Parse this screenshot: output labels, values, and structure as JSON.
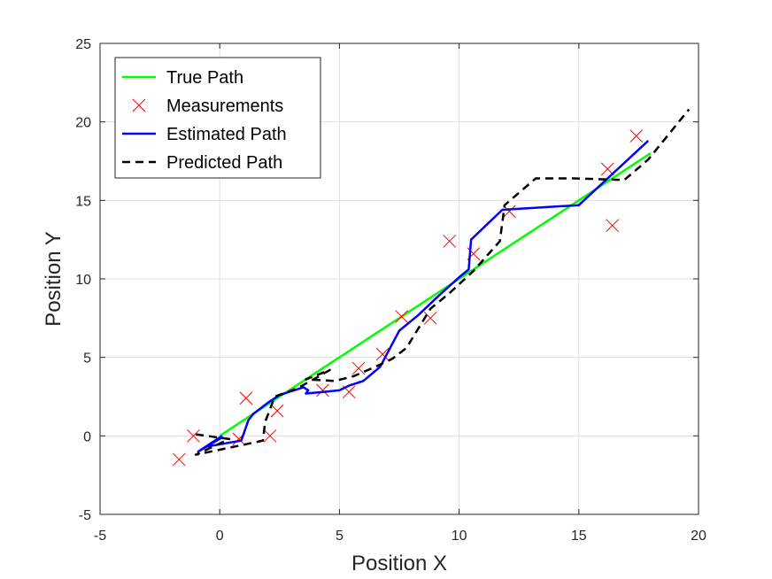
{
  "chart_data": {
    "type": "line",
    "title": "",
    "xlabel": "Position X",
    "ylabel": "Position Y",
    "xlim": [
      -5,
      20
    ],
    "ylim": [
      -5,
      25
    ],
    "xticks": [
      -5,
      0,
      5,
      10,
      15,
      20
    ],
    "yticks": [
      -5,
      0,
      5,
      10,
      15,
      20,
      25
    ],
    "xtick_labels": [
      "-5",
      "0",
      "5",
      "10",
      "15",
      "20"
    ],
    "ytick_labels": [
      "-5",
      "0",
      "5",
      "10",
      "15",
      "20",
      "25"
    ],
    "grid": true,
    "legend_position": "top-left",
    "series": [
      {
        "name": "True Path",
        "style": "line",
        "color": "#00ff00",
        "x": [
          0,
          18
        ],
        "y": [
          0,
          18
        ]
      },
      {
        "name": "Measurements",
        "style": "marker-x",
        "color": "#ff0000",
        "x": [
          -1.7,
          -1.1,
          0.8,
          1.1,
          2.1,
          2.4,
          4.3,
          5.4,
          5.8,
          6.8,
          7.6,
          8.8,
          9.6,
          10.6,
          12.1,
          16.2,
          16.4,
          17.4
        ],
        "y": [
          -1.5,
          0.0,
          -0.2,
          2.4,
          0.0,
          1.6,
          2.9,
          2.8,
          4.3,
          5.2,
          7.6,
          7.5,
          12.4,
          11.6,
          14.3,
          17.0,
          13.4,
          19.1
        ]
      },
      {
        "name": "Estimated Path",
        "style": "line",
        "color": "#0000ff",
        "x": [
          0.1,
          -0.9,
          0.1,
          -0.6,
          0.9,
          1.2,
          1.4,
          2.0,
          2.5,
          3.5,
          3.7,
          3.6,
          4.3,
          5.0,
          5.4,
          6.0,
          6.7,
          7.5,
          8.3,
          9.2,
          10.0,
          10.4,
          10.5,
          11.8,
          15.0,
          17.9
        ],
        "y": [
          0.0,
          -1.0,
          -0.1,
          -0.7,
          -0.3,
          1.0,
          1.4,
          2.1,
          2.6,
          3.1,
          2.9,
          2.7,
          2.8,
          2.9,
          3.2,
          3.5,
          4.4,
          6.7,
          7.7,
          9.0,
          10.1,
          10.6,
          12.5,
          14.4,
          14.7,
          18.8
        ]
      },
      {
        "name": "Predicted Path",
        "style": "dashed",
        "color": "#000000",
        "x": [
          -1.0,
          0.4,
          -1.0,
          1.2,
          1.8,
          1.9,
          2.3,
          3.2,
          3.8,
          4.6,
          3.6,
          4.8,
          5.6,
          6.5,
          7.2,
          7.8,
          8.8,
          9.6,
          10.6,
          11.7,
          11.9,
          13.2,
          14.8,
          16.9,
          17.9,
          19.6
        ],
        "y": [
          0.1,
          -0.2,
          -1.2,
          -0.5,
          -0.3,
          0.9,
          2.5,
          3.0,
          3.5,
          4.2,
          3.6,
          3.5,
          3.8,
          4.4,
          4.9,
          5.6,
          8.1,
          9.1,
          10.5,
          12.4,
          14.7,
          16.4,
          16.4,
          16.3,
          17.6,
          20.8
        ]
      }
    ]
  }
}
